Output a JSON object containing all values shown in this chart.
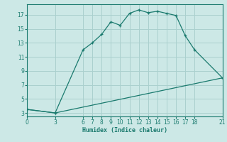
{
  "xlabel": "Humidex (Indice chaleur)",
  "bg_color": "#cce8e6",
  "grid_color": "#aad0ce",
  "line_color": "#1a7a6e",
  "curve1_x": [
    0,
    3,
    6,
    7,
    8,
    9,
    10,
    11,
    12,
    13,
    14,
    15,
    16,
    17,
    18,
    21
  ],
  "curve1_y": [
    3.5,
    3.0,
    12.0,
    13.0,
    14.2,
    16.0,
    15.5,
    17.2,
    17.7,
    17.3,
    17.5,
    17.2,
    16.9,
    14.0,
    12.0,
    8.0
  ],
  "curve2_x": [
    0,
    3,
    21
  ],
  "curve2_y": [
    3.5,
    3.0,
    8.0
  ],
  "xticks": [
    0,
    3,
    6,
    7,
    8,
    9,
    10,
    11,
    12,
    13,
    14,
    15,
    16,
    17,
    18,
    21
  ],
  "yticks": [
    3,
    5,
    7,
    9,
    11,
    13,
    15,
    17
  ],
  "xlim": [
    0,
    21
  ],
  "ylim": [
    2.5,
    18.5
  ]
}
